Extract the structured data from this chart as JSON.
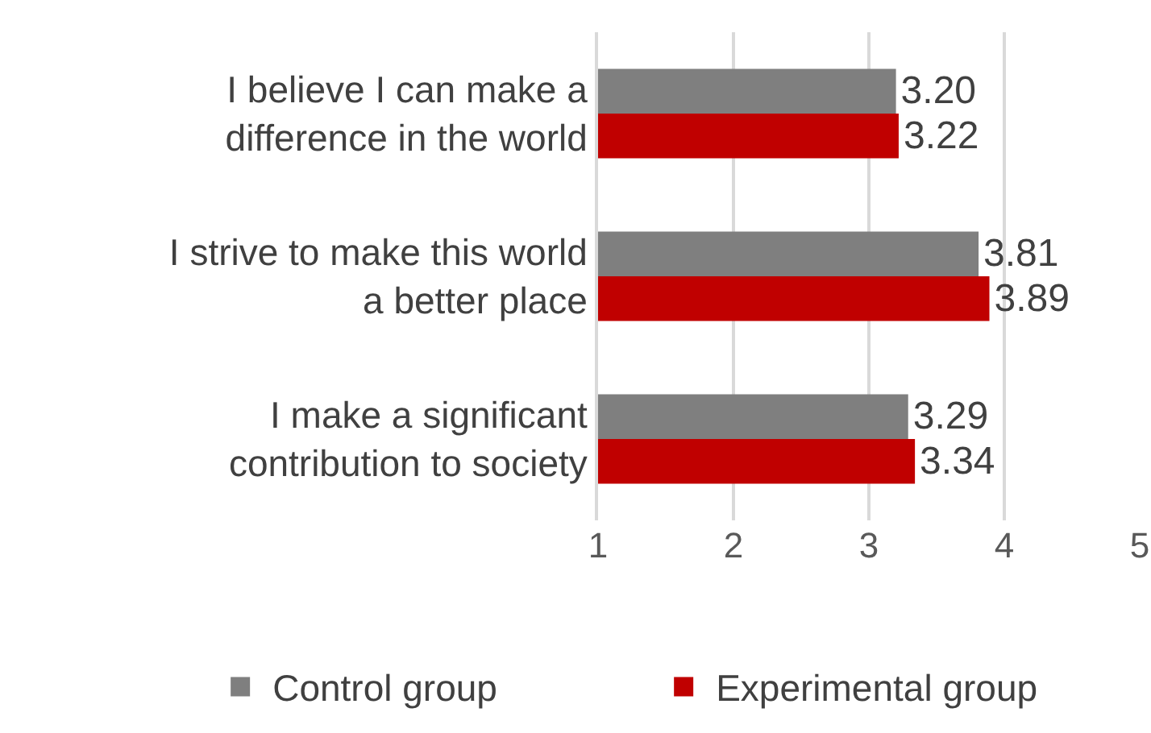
{
  "chart_data": {
    "type": "bar",
    "orientation": "horizontal",
    "categories": [
      "I believe I can make a difference in the world",
      "I strive to make this world a better place",
      "I make a significant contribution to society"
    ],
    "series": [
      {
        "name": "Control group",
        "color": "#7f7f7f",
        "values": [
          3.2,
          3.81,
          3.29
        ],
        "value_labels": [
          "3.20",
          "3.81",
          "3.29"
        ]
      },
      {
        "name": "Experimental group",
        "color": "#c00000",
        "values": [
          3.22,
          3.89,
          3.34
        ],
        "value_labels": [
          "3.22",
          "3.89",
          "3.34"
        ]
      }
    ],
    "xlim": [
      1,
      5
    ],
    "xticks": [
      1,
      2,
      3,
      4,
      5
    ],
    "grid": "x",
    "legend": "bottom"
  }
}
